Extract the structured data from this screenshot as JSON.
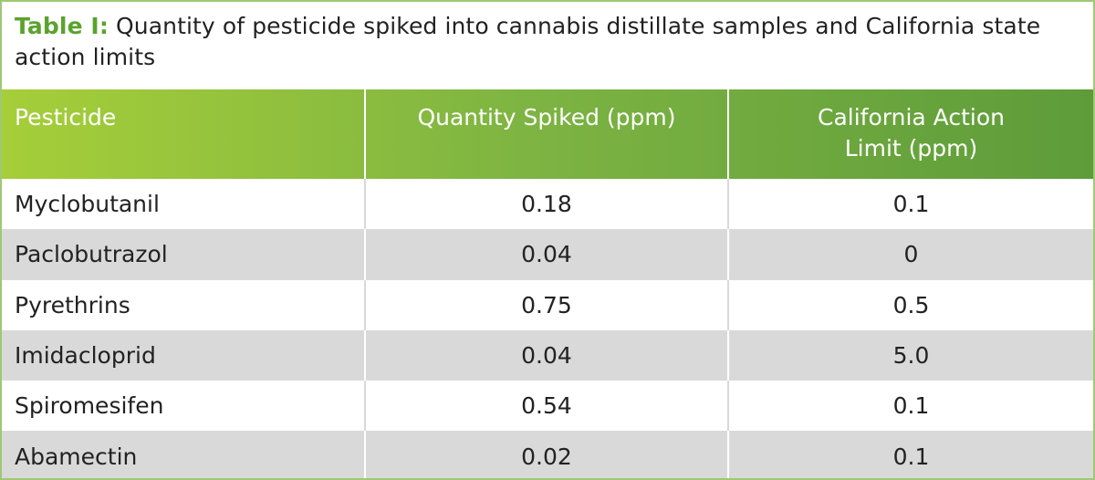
{
  "caption": {
    "label": "Table I:",
    "text": " Quantity of pesticide spiked into cannabis distillate samples and California state action limits"
  },
  "colors": {
    "label_green": "#5aa32d",
    "header_gradient_start": "#a6ce39",
    "header_gradient_end": "#5e9c3a",
    "row_alt": "#d9d9d9"
  },
  "table": {
    "headers": [
      "Pesticide",
      "Quantity Spiked (ppm)",
      "California Action Limit (ppm)"
    ],
    "rows": [
      {
        "pesticide": "Myclobutanil",
        "spiked": "0.18",
        "limit": "0.1"
      },
      {
        "pesticide": "Paclobutrazol",
        "spiked": "0.04",
        "limit": "0"
      },
      {
        "pesticide": "Pyrethrins",
        "spiked": "0.75",
        "limit": "0.5"
      },
      {
        "pesticide": "Imidacloprid",
        "spiked": "0.04",
        "limit": "5.0"
      },
      {
        "pesticide": "Spiromesifen",
        "spiked": "0.54",
        "limit": "0.1"
      },
      {
        "pesticide": "Abamectin",
        "spiked": "0.02",
        "limit": "0.1"
      }
    ]
  }
}
